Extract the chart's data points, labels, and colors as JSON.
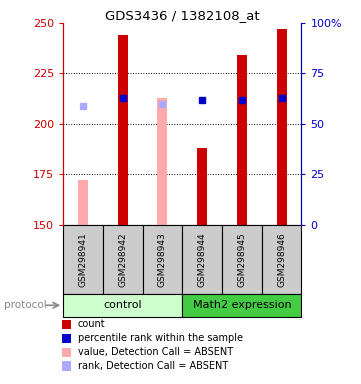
{
  "title": "GDS3436 / 1382108_at",
  "samples": [
    "GSM298941",
    "GSM298942",
    "GSM298943",
    "GSM298944",
    "GSM298945",
    "GSM298946"
  ],
  "ylim": [
    150,
    250
  ],
  "y_ticks": [
    150,
    175,
    200,
    225,
    250
  ],
  "y2_ticks": [
    0,
    25,
    50,
    75,
    100
  ],
  "y2_tick_labels": [
    "0",
    "25",
    "50",
    "75",
    "100%"
  ],
  "bar_values": [
    null,
    244,
    null,
    188,
    234,
    247
  ],
  "bar_color": "#cc0000",
  "absent_bar_values": [
    172,
    null,
    213,
    null,
    null,
    null
  ],
  "absent_bar_color": "#ffaaaa",
  "blue_square_values": [
    209,
    213,
    210,
    212,
    212,
    213
  ],
  "blue_square_absent": [
    true,
    false,
    true,
    false,
    false,
    false
  ],
  "blue_square_color": "#0000cc",
  "blue_square_absent_color": "#aaaaff",
  "bar_width": 0.25,
  "group_colors": [
    "#ccffcc",
    "#44cc44"
  ],
  "sample_box_color": "#cccccc",
  "left_axis_color": "#cc0000",
  "right_axis_color": "#0000cc",
  "legend_items": [
    {
      "label": "count",
      "color": "#cc0000"
    },
    {
      "label": "percentile rank within the sample",
      "color": "#0000cc"
    },
    {
      "label": "value, Detection Call = ABSENT",
      "color": "#ffaaaa"
    },
    {
      "label": "rank, Detection Call = ABSENT",
      "color": "#aaaaff"
    }
  ],
  "protocol_label": "protocol",
  "control_label": "control",
  "math2_label": "Math2 expression"
}
